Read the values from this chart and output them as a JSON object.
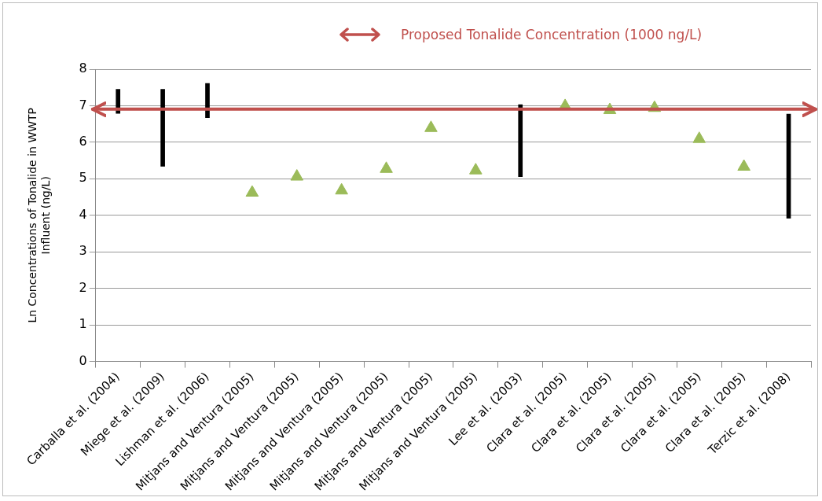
{
  "chart_data": {
    "type": "bar",
    "ylabel": "Ln Concentrations of Tonalide in WWTP Influent (ng/L)",
    "categories": [
      "Carballa et al. (2004)",
      "Miege et al. (2009)",
      "Lishman et al. (2006)",
      "Mitjans and Ventura (2005)",
      "Mitjans and Ventura (2005)",
      "Mitjans and Ventura (2005)",
      "Mitjans and Ventura (2005)",
      "Mitjans and Ventura (2005)",
      "Mitjans and Ventura (2005)",
      "Lee et al. (2003)",
      "Clara et al. (2005)",
      "Clara et al. (2005)",
      "Clara et al. (2005)",
      "Clara et al. (2005)",
      "Clara et al. (2005)",
      "Terzic et al. (2008)"
    ],
    "series": [
      {
        "color": "#000000",
        "base": [
          6.79,
          5.34,
          6.67,
          null,
          null,
          null,
          null,
          null,
          null,
          5.06,
          null,
          null,
          null,
          null,
          null,
          3.92
        ],
        "values": [
          0.66,
          2.11,
          0.94,
          null,
          null,
          null,
          null,
          null,
          null,
          1.97,
          null,
          null,
          null,
          null,
          null,
          2.85
        ]
      },
      {
        "type": "scatter",
        "color": "#9bbb59",
        "marker": "triangle",
        "values": [
          null,
          null,
          null,
          4.62,
          5.06,
          4.68,
          5.27,
          6.39,
          5.23,
          null,
          6.99,
          6.88,
          6.94,
          6.09,
          5.33,
          null
        ]
      }
    ],
    "ylim": [
      0,
      8
    ],
    "yticks": [
      0,
      1,
      2,
      3,
      4,
      5,
      6,
      7,
      8
    ],
    "grid": "y",
    "ref_lines": [
      {
        "axis": "y",
        "value": 6.91,
        "label": "Proposed Tonalide Concentration (1000 ng/L)",
        "color": "#c0504d"
      }
    ]
  }
}
